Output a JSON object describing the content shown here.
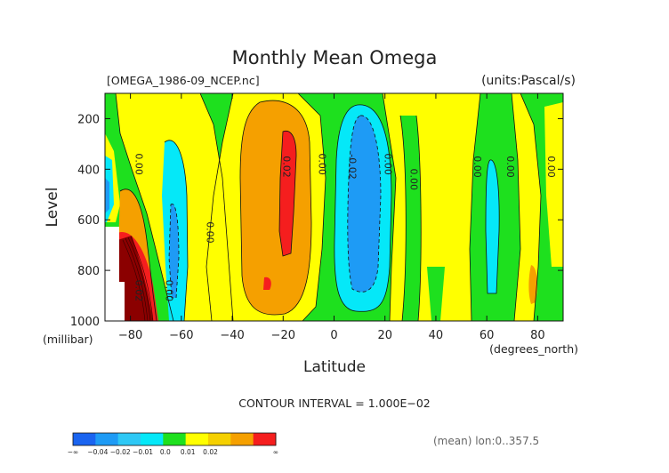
{
  "chart_data": {
    "type": "heatmap",
    "title": "Monthly Mean Omega",
    "source_file": "[OMEGA_1986-09_NCEP.nc]",
    "units": "(units:Pascal/s)",
    "xlabel": "Latitude",
    "ylabel": "Level",
    "x_units": "(degrees_north)",
    "y_units": "(millibar)",
    "xlim": [
      -90,
      90
    ],
    "ylim": [
      1000,
      100
    ],
    "x_ticks": [
      -80,
      -60,
      -40,
      -20,
      0,
      20,
      40,
      60,
      80
    ],
    "x_tick_labels": [
      "−80",
      "−60",
      "−40",
      "−20",
      "0",
      "20",
      "40",
      "60",
      "80"
    ],
    "y_ticks": [
      200,
      400,
      600,
      800,
      1000
    ],
    "y_tick_labels": [
      "200",
      "400",
      "600",
      "800",
      "1000"
    ],
    "contour_interval_text": "CONTOUR INTERVAL = 1.000E−02",
    "mean_note": "(mean) lon:0..357.5",
    "contour_labels": [
      {
        "text": "0.00",
        "lat": -78,
        "level": 380
      },
      {
        "text": "0.00",
        "lat": -50,
        "level": 650
      },
      {
        "text": "0.02",
        "lat": -78,
        "level": 880
      },
      {
        "text": "0.00",
        "lat": -66,
        "level": 880
      },
      {
        "text": "0.02",
        "lat": -20,
        "level": 390
      },
      {
        "text": "0.00",
        "lat": -6,
        "level": 380
      },
      {
        "text": "-0.02",
        "lat": 6,
        "level": 390
      },
      {
        "text": "0.00",
        "lat": 20,
        "level": 380
      },
      {
        "text": "0.00",
        "lat": 30,
        "level": 440
      },
      {
        "text": "0.00",
        "lat": 55,
        "level": 390
      },
      {
        "text": "0.00",
        "lat": 68,
        "level": 390
      },
      {
        "text": "0.00",
        "lat": 84,
        "level": 390
      }
    ],
    "color_scale": {
      "labels": [
        "−∞",
        "−0.04",
        "−0.02",
        "−0.01",
        "0.0",
        "0.01",
        "0.02",
        "∞"
      ],
      "colors": [
        "#1a64f0",
        "#1e9bf5",
        "#2ec8f5",
        "#05e8f8",
        "#1ee01e",
        "#ffff00",
        "#f5d000",
        "#f5a000",
        "#f51e1e"
      ]
    },
    "colors": {
      "very_negative": "#1a64f0",
      "negative": "#1e9bf5",
      "slightly_negative": "#05e8f8",
      "near_zero": "#1ee01e",
      "slightly_positive": "#ffff00",
      "positive": "#f5a000",
      "very_positive": "#f51e1e",
      "extreme": "#8b0000"
    }
  }
}
